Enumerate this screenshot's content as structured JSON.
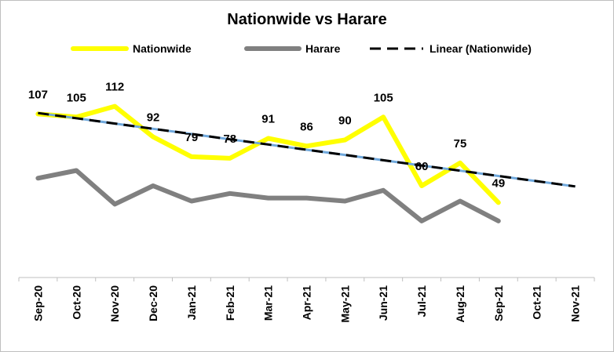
{
  "chart_data": {
    "type": "line",
    "title": "Nationwide vs Harare",
    "xlabel": "",
    "ylabel": "",
    "categories": [
      "Sep-20",
      "Oct-20",
      "Nov-20",
      "Dec-20",
      "Jan-21",
      "Feb-21",
      "Mar-21",
      "Apr-21",
      "May-21",
      "Jun-21",
      "Jul-21",
      "Aug-21",
      "Sep-21",
      "Oct-21",
      "Nov-21"
    ],
    "series": [
      {
        "name": "Nationwide",
        "color": "#ffff00",
        "values": [
          107,
          105,
          112,
          92,
          79,
          78,
          91,
          86,
          90,
          105,
          60,
          75,
          49,
          null,
          null
        ],
        "labels": [
          "107",
          "105",
          "112",
          "92",
          "79",
          "78",
          "91",
          "86",
          "90",
          "105",
          "60",
          "75",
          "49",
          null,
          null
        ]
      },
      {
        "name": "Harare",
        "color": "#808080",
        "values": [
          65,
          70,
          48,
          60,
          50,
          55,
          52,
          52,
          50,
          57,
          37,
          50,
          37,
          null,
          null
        ]
      },
      {
        "name": "Linear (Nationwide)",
        "color": "#000000",
        "style": "dashed",
        "values": [
          107.6,
          104.2,
          100.7,
          97.3,
          93.9,
          90.4,
          87.0,
          83.6,
          80.2,
          76.7,
          73.3,
          69.9,
          66.4,
          63.0,
          59.6
        ]
      }
    ],
    "ylim": [
      0,
      140
    ],
    "grid": false,
    "legend_position": "top"
  }
}
